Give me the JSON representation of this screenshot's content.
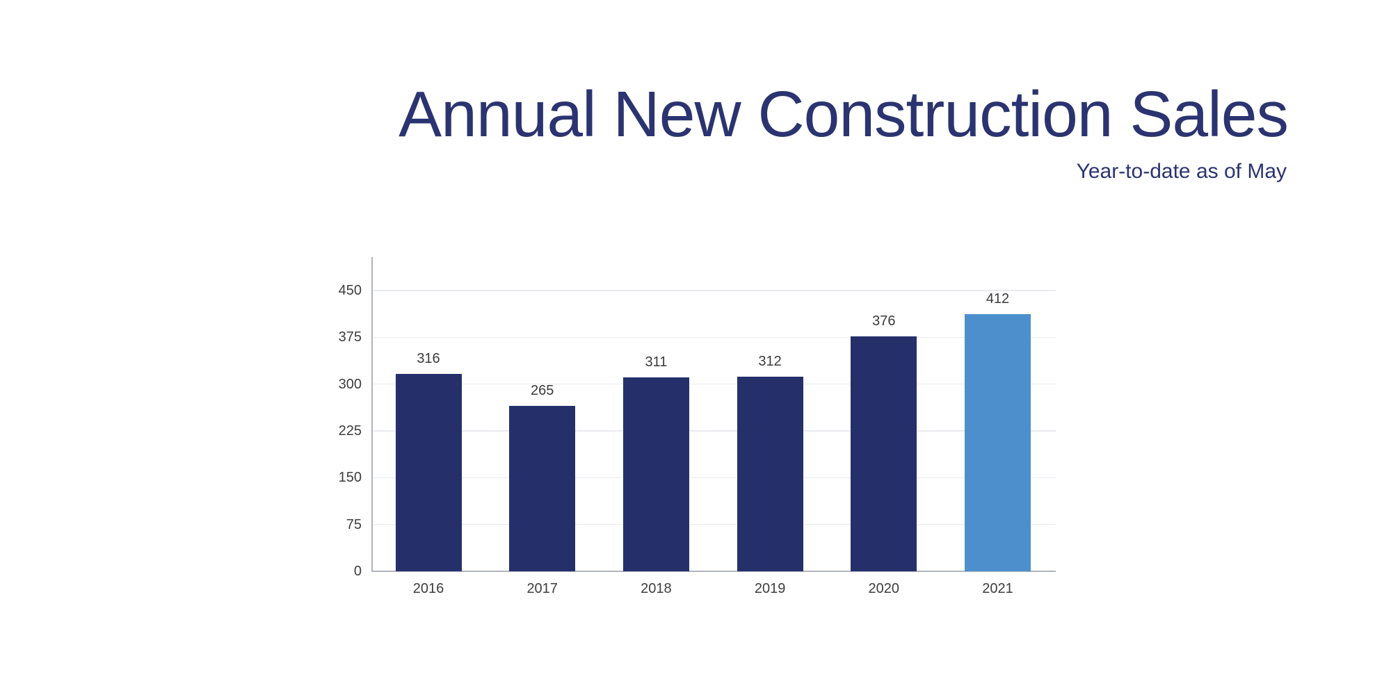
{
  "header": {
    "color": "#2b3470"
  },
  "chart_data": {
    "type": "bar",
    "title": "Annual New Construction Sales",
    "subtitle": "Year-to-date as of May",
    "categories": [
      "2016",
      "2017",
      "2018",
      "2019",
      "2020",
      "2021"
    ],
    "values": [
      316,
      265,
      311,
      312,
      376,
      412
    ],
    "bar_colors": [
      "#25306b",
      "#25306b",
      "#25306b",
      "#25306b",
      "#25306b",
      "#4d8fcc"
    ],
    "highlight_index": 5,
    "highlight_color": "#4d8fcc",
    "series_color": "#25306b",
    "y_ticks": [
      0,
      75,
      150,
      225,
      300,
      375,
      450
    ],
    "ylim": [
      0,
      500
    ],
    "xlabel": "",
    "ylabel": "",
    "grid": true,
    "legend": "none",
    "value_labels_shown": true,
    "grid_color": "#e8eaef",
    "axis_color": "#b2b4bc",
    "tick_label_color": "#3d3d3d",
    "value_label_color": "#3a3a3a"
  }
}
